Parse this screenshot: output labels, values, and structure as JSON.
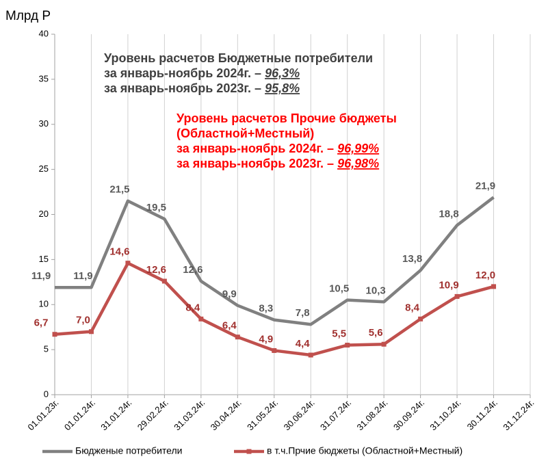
{
  "chart_data": {
    "type": "line",
    "y_label": "Млрд Р",
    "categories": [
      "01.01.23г.",
      "01.01.24г.",
      "31.01.24г.",
      "29.02.24г.",
      "31.03.24г.",
      "30.04.24г.",
      "31.05.24г.",
      "30.06.24г.",
      "31.07.24г.",
      "31.08.24г.",
      "30.09.24г.",
      "31.10.24г.",
      "30.11.24г.",
      "31.12.24г."
    ],
    "series": [
      {
        "name": "Бюдженые потребители",
        "color": "#808080",
        "label_color": "#595959",
        "marker": false,
        "values": [
          11.9,
          11.9,
          21.5,
          19.5,
          12.6,
          9.9,
          8.3,
          7.8,
          10.5,
          10.3,
          13.8,
          18.8,
          21.9,
          null
        ],
        "value_labels": [
          "11,9",
          "11,9",
          "21,5",
          "19,5",
          "12,6",
          "9,9",
          "8,3",
          "7,8",
          "10,5",
          "10,3",
          "13,8",
          "18,8",
          "21,9",
          null
        ]
      },
      {
        "name": "в т.ч.Прчие бюджеты (Областной+Местный)",
        "color": "#c0504d",
        "label_color": "#a0302e",
        "marker": true,
        "values": [
          6.7,
          7.0,
          14.6,
          12.6,
          8.4,
          6.4,
          4.9,
          4.4,
          5.5,
          5.6,
          8.4,
          10.9,
          12.0,
          null
        ],
        "value_labels": [
          "6,7",
          "7,0",
          "14,6",
          "12,6",
          "8,4",
          "6,4",
          "4,9",
          "4,4",
          "5,5",
          "5,6",
          "8,4",
          "10,9",
          "12,0",
          null
        ]
      }
    ],
    "ylim": [
      0,
      40
    ],
    "yticks": [
      0,
      5,
      10,
      15,
      20,
      25,
      30,
      35,
      40
    ],
    "grid": "vertical",
    "annotations": [
      {
        "color": "#404040",
        "lines": [
          {
            "text": "Уровень расчетов Бюджетные потребители"
          },
          {
            "text": "за январь-ноябрь 2024г. – ",
            "emph": "96,3%"
          },
          {
            "text": "за январь-ноябрь 2023г. – ",
            "emph": "95,8%"
          }
        ]
      },
      {
        "color": "#ff0000",
        "lines": [
          {
            "text": "Уровень расчетов Прочие бюджеты"
          },
          {
            "text": "(Областной+Местный)"
          },
          {
            "text": "за январь-ноябрь 2024г. – ",
            "emph": "96,99%"
          },
          {
            "text": "за январь-ноябрь 2023г. – ",
            "emph": "96,98%"
          }
        ]
      }
    ]
  }
}
